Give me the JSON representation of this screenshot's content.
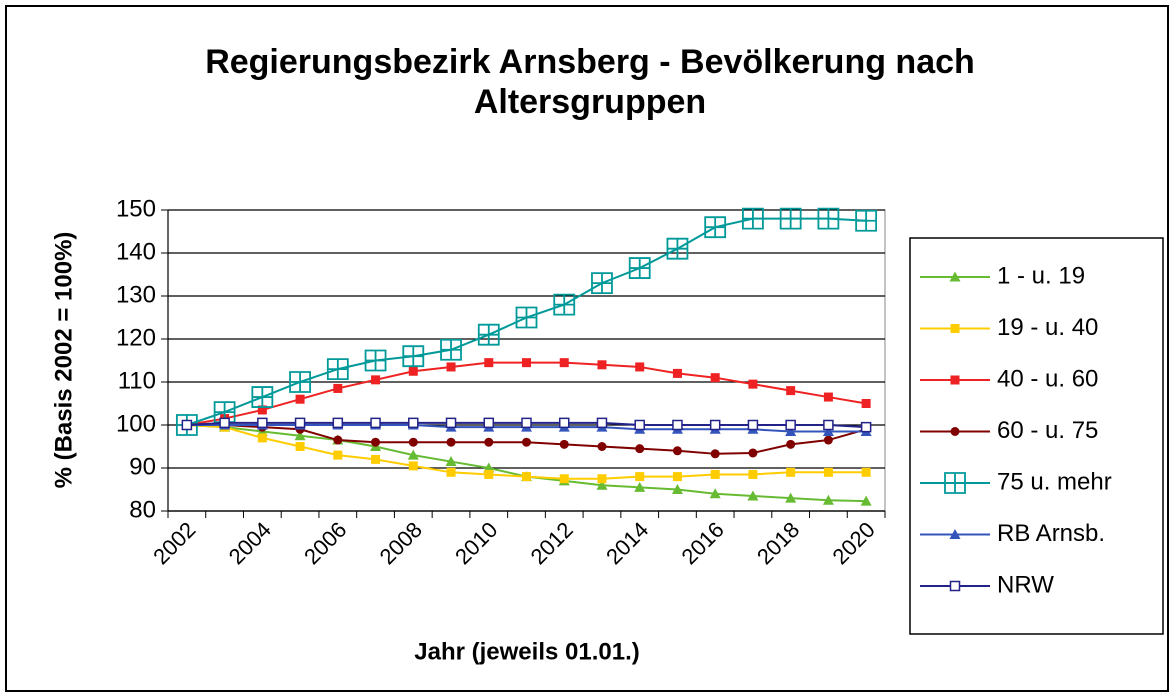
{
  "chart_data": {
    "type": "line",
    "title": "Regierungsbezirk Arnsberg - Bevölkerung nach Altersgruppen",
    "x_label": "Jahr (jeweils 01.01.)",
    "y_label": "% (Basis 2002 = 100%)",
    "categories": [
      "2002",
      null,
      "2004",
      null,
      "2006",
      null,
      "2008",
      null,
      "2010",
      null,
      "2012",
      null,
      "2014",
      null,
      "2016",
      null,
      "2018",
      null,
      "2020"
    ],
    "ylim": [
      80,
      150
    ],
    "yticks": [
      80,
      90,
      100,
      110,
      120,
      130,
      140,
      150
    ],
    "grid": true,
    "legend": "right",
    "series": [
      {
        "name": "1 - u. 19",
        "color": "#66bb33",
        "marker": "triangle",
        "values": [
          100,
          99.5,
          98.5,
          97.5,
          96.5,
          95,
          93,
          91.5,
          90,
          88,
          87,
          86,
          85.5,
          85,
          84,
          83.5,
          83,
          82.5,
          82.3
        ]
      },
      {
        "name": "19 - u. 40",
        "color": "#ffcc00",
        "marker": "square",
        "values": [
          100,
          99.5,
          97,
          95,
          93,
          92,
          90.5,
          89,
          88.5,
          88,
          87.5,
          87.5,
          88,
          88,
          88.5,
          88.5,
          89,
          89,
          89
        ]
      },
      {
        "name": "40 - u. 60",
        "color": "#ee2222",
        "marker": "square",
        "values": [
          100,
          101.5,
          103.5,
          106,
          108.5,
          110.5,
          112.5,
          113.5,
          114.5,
          114.5,
          114.5,
          114,
          113.5,
          112,
          111,
          109.5,
          108,
          106.5,
          105
        ]
      },
      {
        "name": "60 - u. 75",
        "color": "#800000",
        "marker": "circle",
        "values": [
          100,
          100,
          99.5,
          99,
          96.5,
          96,
          96,
          96,
          96,
          96,
          95.5,
          95,
          94.5,
          94,
          93.3,
          93.5,
          95.5,
          96.5,
          99
        ]
      },
      {
        "name": "75 u. mehr",
        "color": "#009999",
        "marker": "box-plus",
        "values": [
          100,
          103,
          106.5,
          110,
          113,
          115,
          116,
          117.5,
          121,
          125,
          128,
          133,
          136.5,
          141,
          146,
          148,
          148,
          148,
          147.5
        ]
      },
      {
        "name": "RB Arnsb.",
        "color": "#3355bb",
        "marker": "triangle",
        "values": [
          100,
          100,
          100,
          100,
          100,
          100,
          100,
          99.5,
          99.5,
          99.5,
          99.5,
          99.5,
          99,
          99,
          99,
          99,
          98.5,
          98.5,
          98.5
        ]
      },
      {
        "name": "NRW",
        "color": "#222288",
        "marker": "open-square",
        "values": [
          100,
          100.5,
          100.5,
          100.5,
          100.5,
          100.5,
          100.5,
          100.5,
          100.5,
          100.5,
          100.5,
          100.5,
          100,
          100,
          100,
          100,
          100,
          100,
          99.5
        ]
      }
    ]
  }
}
